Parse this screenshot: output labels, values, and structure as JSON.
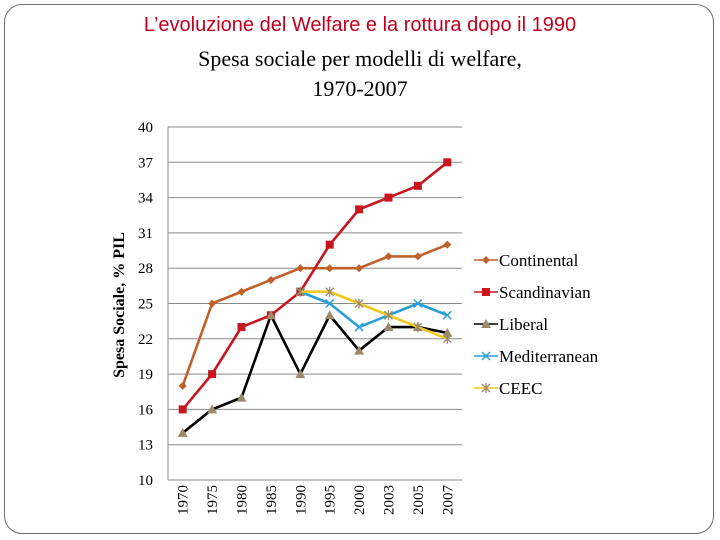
{
  "page": {
    "heading": "L’evoluzione del Welfare e la rottura dopo il 1990"
  },
  "chart_data": {
    "type": "line",
    "title_line1": "Spesa sociale per modelli di welfare,",
    "title_line2": "1970-2007",
    "ylabel": "Spesa Sociale, % PIL",
    "xlabel": "",
    "ylim": [
      10,
      40
    ],
    "yticks": [
      10,
      13,
      16,
      19,
      22,
      25,
      28,
      31,
      34,
      37,
      40
    ],
    "categories": [
      "1970",
      "1975",
      "1980",
      "1985",
      "1990",
      "1995",
      "2000",
      "2003",
      "2005",
      "2007"
    ],
    "grid": "horizontal",
    "legend_position": "right",
    "series": [
      {
        "name": "Continental",
        "color": "#c0602a",
        "marker": "diamond",
        "values": [
          18,
          25,
          26,
          27,
          28,
          28,
          28,
          29,
          29,
          30
        ]
      },
      {
        "name": "Scandinavian",
        "color": "#c8161e",
        "marker": "square",
        "values": [
          16,
          19,
          23,
          24,
          26,
          30,
          33,
          34,
          35,
          37
        ]
      },
      {
        "name": "Liberal",
        "color": "#000000",
        "marker": "triangle",
        "values": [
          14,
          16,
          17,
          24,
          19,
          24,
          21,
          23,
          23,
          22.5
        ]
      },
      {
        "name": "Mediterranean",
        "color": "#2c9ed8",
        "marker": "x",
        "values": [
          null,
          null,
          null,
          null,
          26,
          25,
          23,
          24,
          25,
          24
        ]
      },
      {
        "name": "CEEC",
        "color": "#f0c81e",
        "marker": "star",
        "values": [
          null,
          null,
          null,
          null,
          26,
          26,
          25,
          24,
          23,
          22
        ]
      }
    ]
  }
}
